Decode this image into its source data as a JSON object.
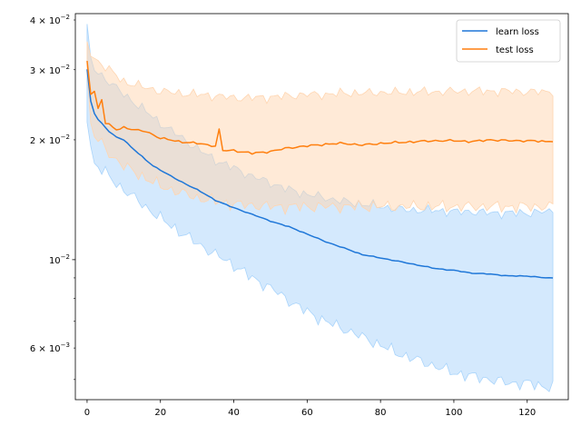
{
  "chart_data": {
    "type": "line",
    "title": "",
    "xlabel": "",
    "ylabel": "",
    "xlim": [
      -3.2,
      131.2
    ],
    "ylim": [
      0.00445,
      0.0415
    ],
    "yscale": "log",
    "grid": false,
    "legend": {
      "placement": "top-right"
    },
    "x_ticks": [
      0,
      20,
      40,
      60,
      80,
      100,
      120
    ],
    "x_tick_labels": [
      "0",
      "20",
      "40",
      "60",
      "80",
      "100",
      "120"
    ],
    "y_major_ticks": [
      0.01
    ],
    "y_major_tick_labels": [
      {
        "mantissa": "10",
        "exponent": "−2"
      }
    ],
    "y_minor_ticks": [
      0.005,
      0.006,
      0.007,
      0.008,
      0.009,
      0.02,
      0.03,
      0.04
    ],
    "y_minor_tick_labels": [
      {
        "value": 0.006,
        "mantissa": "6 × 10",
        "exponent": "−3"
      },
      {
        "value": 0.02,
        "mantissa": "2 × 10",
        "exponent": "−2"
      },
      {
        "value": 0.03,
        "mantissa": "3 × 10",
        "exponent": "−2"
      },
      {
        "value": 0.04,
        "mantissa": "4 × 10",
        "exponent": "−2"
      }
    ],
    "series": [
      {
        "name": "learn loss",
        "color": "#1f77d8",
        "band_color": "#a9d4fb",
        "mean_x": [
          0,
          1,
          2,
          3,
          4,
          5,
          6,
          8,
          10,
          12,
          14,
          16,
          18,
          20,
          25,
          30,
          35,
          40,
          45,
          50,
          55,
          60,
          65,
          70,
          75,
          80,
          85,
          90,
          95,
          100,
          105,
          110,
          115,
          120,
          125,
          127
        ],
        "mean_y": [
          0.03,
          0.025,
          0.0233,
          0.0225,
          0.022,
          0.0215,
          0.021,
          0.0203,
          0.02,
          0.0192,
          0.0185,
          0.0178,
          0.0172,
          0.0168,
          0.0158,
          0.015,
          0.0141,
          0.0135,
          0.013,
          0.0125,
          0.0121,
          0.0116,
          0.0111,
          0.0107,
          0.0103,
          0.0101,
          0.0099,
          0.0097,
          0.0095,
          0.0094,
          0.00925,
          0.0092,
          0.0091,
          0.0091,
          0.009,
          0.009
        ],
        "band_x": [
          0,
          1,
          2,
          4,
          6,
          8,
          10,
          15,
          20,
          25,
          30,
          35,
          40,
          45,
          50,
          55,
          60,
          65,
          70,
          75,
          80,
          85,
          90,
          95,
          100,
          105,
          110,
          115,
          120,
          125,
          127
        ],
        "band_upper": [
          0.038,
          0.032,
          0.03,
          0.029,
          0.028,
          0.027,
          0.026,
          0.024,
          0.022,
          0.0205,
          0.019,
          0.0178,
          0.017,
          0.0162,
          0.0156,
          0.015,
          0.0146,
          0.0143,
          0.014,
          0.0138,
          0.0136,
          0.0134,
          0.0133,
          0.0133,
          0.0132,
          0.0132,
          0.0131,
          0.0131,
          0.0131,
          0.0132,
          0.0132
        ],
        "band_lower": [
          0.023,
          0.019,
          0.0175,
          0.0168,
          0.0162,
          0.0155,
          0.015,
          0.0138,
          0.0127,
          0.0118,
          0.011,
          0.0103,
          0.0097,
          0.009,
          0.0085,
          0.0079,
          0.0074,
          0.007,
          0.0067,
          0.0064,
          0.0061,
          0.0058,
          0.0056,
          0.0054,
          0.0052,
          0.0051,
          0.005,
          0.0049,
          0.0049,
          0.0048,
          0.0048
        ]
      },
      {
        "name": "test loss",
        "color": "#ff7f0e",
        "band_color": "#ffd5b0",
        "mean_x": [
          0,
          1,
          2,
          3,
          4,
          5,
          6,
          8,
          10,
          12,
          14,
          16,
          18,
          20,
          25,
          30,
          35,
          36,
          37,
          40,
          45,
          50,
          55,
          60,
          65,
          70,
          75,
          80,
          85,
          90,
          95,
          100,
          105,
          110,
          115,
          120,
          125,
          127
        ],
        "mean_y": [
          0.0315,
          0.026,
          0.0265,
          0.024,
          0.0252,
          0.022,
          0.0218,
          0.0212,
          0.0215,
          0.0213,
          0.0211,
          0.021,
          0.0206,
          0.0202,
          0.0198,
          0.0196,
          0.0193,
          0.0212,
          0.0188,
          0.0188,
          0.0185,
          0.0187,
          0.0191,
          0.0193,
          0.0195,
          0.0196,
          0.0194,
          0.0196,
          0.0197,
          0.0198,
          0.0199,
          0.0199,
          0.0198,
          0.02,
          0.0199,
          0.0199,
          0.0198,
          0.0199
        ],
        "band_x": [
          0,
          1,
          2,
          4,
          6,
          8,
          10,
          15,
          20,
          25,
          30,
          35,
          40,
          45,
          50,
          55,
          60,
          65,
          70,
          75,
          80,
          85,
          90,
          95,
          100,
          105,
          110,
          115,
          120,
          125,
          127
        ],
        "band_upper": [
          0.035,
          0.033,
          0.032,
          0.031,
          0.03,
          0.029,
          0.028,
          0.0272,
          0.0265,
          0.0262,
          0.026,
          0.0258,
          0.0255,
          0.0255,
          0.0256,
          0.0258,
          0.026,
          0.026,
          0.0262,
          0.0262,
          0.0263,
          0.0263,
          0.0264,
          0.0264,
          0.0265,
          0.0265,
          0.0265,
          0.0265,
          0.0264,
          0.0264,
          0.0266
        ],
        "band_lower": [
          0.029,
          0.022,
          0.0205,
          0.0195,
          0.0185,
          0.0178,
          0.0172,
          0.0162,
          0.0153,
          0.0148,
          0.0143,
          0.014,
          0.0138,
          0.0137,
          0.0136,
          0.0136,
          0.0136,
          0.0136,
          0.0136,
          0.0136,
          0.0136,
          0.0136,
          0.0136,
          0.0136,
          0.0136,
          0.0136,
          0.0136,
          0.0136,
          0.0136,
          0.0136,
          0.0136
        ]
      }
    ]
  }
}
